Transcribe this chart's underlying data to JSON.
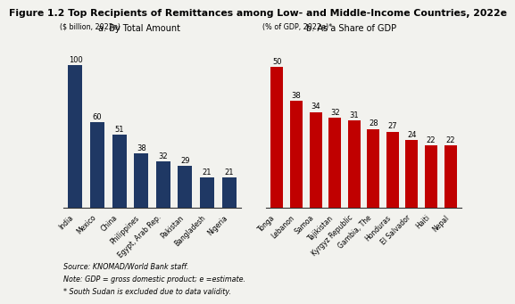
{
  "title": "Figure 1.2 Top Recipients of Remittances among Low- and Middle-Income Countries, 2022e",
  "subtitle_a": "a. By Total Amount",
  "subtitle_b": "b. As a Share of GDP",
  "left_ylabel": "($ billion, 2022e)",
  "right_ylabel": "(% of GDP, 2022e)*",
  "left_categories": [
    "India",
    "Mexico",
    "China",
    "Philippines",
    "Egypt, Arab Rep.",
    "Pakistan",
    "Bangladesh",
    "Nigeria"
  ],
  "left_values": [
    100,
    60,
    51,
    38,
    32,
    29,
    21,
    21
  ],
  "left_color": "#1F3864",
  "right_categories": [
    "Tonga",
    "Lebanon",
    "Samoa",
    "Tajikistan",
    "Kyrgyz Republic",
    "Gambia, The",
    "Honduras",
    "El Salvador",
    "Haiti",
    "Nepal"
  ],
  "right_values": [
    50,
    38,
    34,
    32,
    31,
    28,
    27,
    24,
    22,
    22
  ],
  "right_color": "#C00000",
  "source_text": "Source: KNOMAD/World Bank staff.",
  "note_text": "Note: GDP = gross domestic product; e =estimate.",
  "asterisk_text": "* South Sudan is excluded due to data validity.",
  "bg_color": "#F2F2EE",
  "bar_value_fontsize": 6.0,
  "label_fontsize": 5.5,
  "title_fontsize": 7.8,
  "subtitle_fontsize": 7.0,
  "note_fontsize": 5.8
}
